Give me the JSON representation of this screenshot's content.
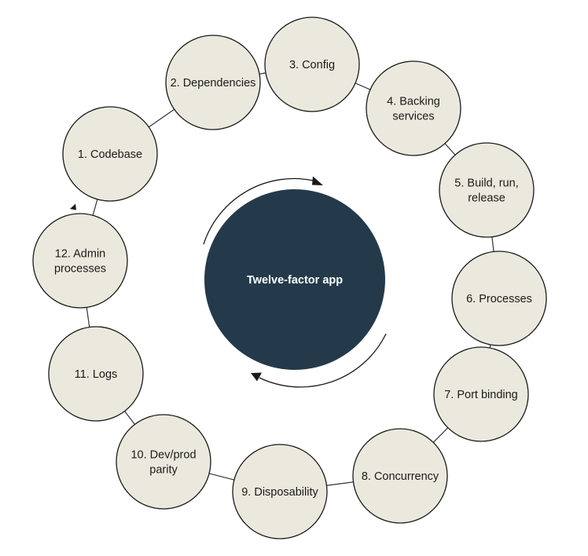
{
  "diagram": {
    "center": {
      "label": "Twelve-factor app"
    },
    "factors": [
      {
        "lines": [
          "1. Codebase"
        ]
      },
      {
        "lines": [
          "2. Dependencies"
        ]
      },
      {
        "lines": [
          "3. Config"
        ]
      },
      {
        "lines": [
          "4. Backing",
          "services"
        ]
      },
      {
        "lines": [
          "5. Build, run,",
          "release"
        ]
      },
      {
        "lines": [
          "6. Processes"
        ]
      },
      {
        "lines": [
          "7. Port binding"
        ]
      },
      {
        "lines": [
          "8. Concurrency"
        ]
      },
      {
        "lines": [
          "9. Disposability"
        ]
      },
      {
        "lines": [
          "10. Dev/prod",
          "parity"
        ]
      },
      {
        "lines": [
          "11. Logs"
        ]
      },
      {
        "lines": [
          "12. Admin",
          "processes"
        ]
      }
    ],
    "colors": {
      "factor_fill": "#ebe9dd",
      "center_fill": "#243a4a",
      "outline": "#1a1a1a"
    }
  }
}
